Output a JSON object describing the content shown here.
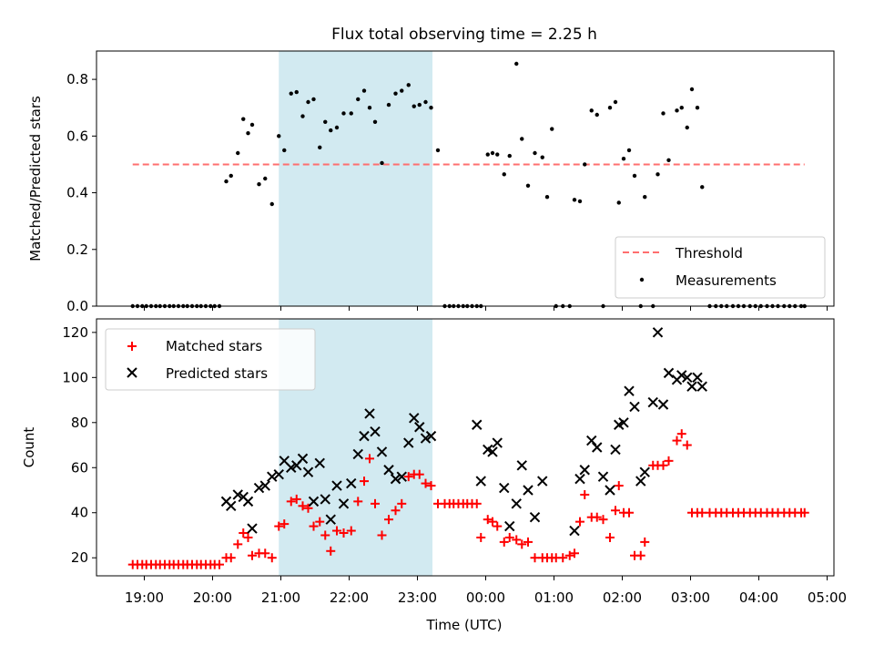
{
  "title": "Flux total observing time = 2.25 h",
  "xlabel": "Time (UTC)",
  "time_ticks": [
    "19:00",
    "20:00",
    "21:00",
    "22:00",
    "23:00",
    "00:00",
    "01:00",
    "02:00",
    "03:00",
    "04:00",
    "05:00"
  ],
  "time_tick_hours": [
    19,
    20,
    21,
    22,
    23,
    24,
    25,
    26,
    27,
    28,
    29
  ],
  "xlim_hours": [
    18.3,
    29.1
  ],
  "shaded_band_hours": [
    20.97,
    23.22
  ],
  "colors": {
    "band": "#add8e6",
    "threshold": "#ff6f6f",
    "matched": "#ff0000",
    "predicted": "#000000",
    "measurement": "#000000"
  },
  "chart_data": [
    {
      "type": "scatter",
      "ylabel": "Matched/Predicted stars",
      "ylim": [
        0,
        0.9
      ],
      "yticks": [
        0.0,
        0.2,
        0.4,
        0.6,
        0.8
      ],
      "ytick_labels": [
        "0.0",
        "0.2",
        "0.4",
        "0.6",
        "0.8"
      ],
      "legend_position": "lower-right",
      "threshold": {
        "name": "Threshold",
        "y": 0.5,
        "x_range": [
          18.83,
          28.67
        ]
      },
      "series": [
        {
          "name": "Measurements",
          "x": [
            18.83,
            18.9,
            18.97,
            19.03,
            19.1,
            19.17,
            19.23,
            19.3,
            19.37,
            19.43,
            19.5,
            19.57,
            19.63,
            19.7,
            19.77,
            19.83,
            19.9,
            19.97,
            20.03,
            20.1,
            20.2,
            20.27,
            20.37,
            20.45,
            20.52,
            20.58,
            20.68,
            20.77,
            20.87,
            20.97,
            21.05,
            21.15,
            21.23,
            21.32,
            21.4,
            21.48,
            21.57,
            21.65,
            21.73,
            21.82,
            21.92,
            22.03,
            22.13,
            22.22,
            22.3,
            22.38,
            22.48,
            22.58,
            22.68,
            22.77,
            22.87,
            22.95,
            23.03,
            23.12,
            23.2,
            23.3,
            23.4,
            23.47,
            23.53,
            23.6,
            23.67,
            23.73,
            23.8,
            23.87,
            23.93,
            24.03,
            24.1,
            24.17,
            24.27,
            24.35,
            24.45,
            24.53,
            24.62,
            24.72,
            24.83,
            24.9,
            24.97,
            25.03,
            25.13,
            25.23,
            25.3,
            25.38,
            25.45,
            25.55,
            25.63,
            25.72,
            25.82,
            25.9,
            25.95,
            26.02,
            26.1,
            26.18,
            26.27,
            26.33,
            26.45,
            26.52,
            26.6,
            26.68,
            26.8,
            26.87,
            26.95,
            27.02,
            27.1,
            27.17,
            27.28,
            27.37,
            27.45,
            27.53,
            27.62,
            27.7,
            27.78,
            27.87,
            27.95,
            28.03,
            28.12,
            28.2,
            28.28,
            28.37,
            28.45,
            28.53,
            28.62,
            28.67
          ],
          "y": [
            0,
            0,
            0,
            0,
            0,
            0,
            0,
            0,
            0,
            0,
            0,
            0,
            0,
            0,
            0,
            0,
            0,
            0,
            0,
            0,
            0.44,
            0.46,
            0.54,
            0.66,
            0.61,
            0.64,
            0.43,
            0.45,
            0.36,
            0.6,
            0.55,
            0.75,
            0.755,
            0.67,
            0.72,
            0.73,
            0.56,
            0.65,
            0.62,
            0.63,
            0.68,
            0.68,
            0.73,
            0.76,
            0.7,
            0.65,
            0.505,
            0.71,
            0.75,
            0.76,
            0.78,
            0.705,
            0.71,
            0.72,
            0.7,
            0.55,
            0,
            0,
            0,
            0,
            0,
            0,
            0,
            0,
            0,
            0.535,
            0.54,
            0.535,
            0.465,
            0.53,
            0.855,
            0.59,
            0.425,
            0.54,
            0.525,
            0.385,
            0.625,
            0,
            0,
            0,
            0.375,
            0.37,
            0.5,
            0.69,
            0.675,
            0,
            0.7,
            0.72,
            0.365,
            0.52,
            0.55,
            0.46,
            0,
            0.385,
            0,
            0.465,
            0.68,
            0.515,
            0.69,
            0.7,
            0.63,
            0.765,
            0.7,
            0.42,
            0,
            0,
            0,
            0,
            0,
            0,
            0,
            0,
            0,
            0,
            0,
            0,
            0,
            0,
            0,
            0,
            0,
            0
          ]
        }
      ]
    },
    {
      "type": "scatter",
      "ylabel": "Count",
      "ylim": [
        12,
        126
      ],
      "yticks": [
        20,
        40,
        60,
        80,
        100,
        120
      ],
      "ytick_labels": [
        "20",
        "40",
        "60",
        "80",
        "100",
        "120"
      ],
      "legend_position": "upper-left",
      "series": [
        {
          "name": "Matched stars",
          "marker": "plus",
          "x": [
            18.83,
            18.9,
            18.97,
            19.03,
            19.1,
            19.17,
            19.23,
            19.3,
            19.37,
            19.43,
            19.5,
            19.57,
            19.63,
            19.7,
            19.77,
            19.83,
            19.9,
            19.97,
            20.03,
            20.1,
            20.2,
            20.27,
            20.37,
            20.45,
            20.52,
            20.58,
            20.68,
            20.77,
            20.87,
            20.97,
            21.05,
            21.15,
            21.23,
            21.32,
            21.4,
            21.48,
            21.57,
            21.65,
            21.73,
            21.82,
            21.92,
            22.03,
            22.13,
            22.22,
            22.3,
            22.38,
            22.48,
            22.58,
            22.68,
            22.77,
            22.87,
            22.95,
            23.03,
            23.12,
            23.2,
            23.3,
            23.4,
            23.47,
            23.53,
            23.6,
            23.67,
            23.73,
            23.8,
            23.87,
            23.93,
            24.03,
            24.1,
            24.17,
            24.27,
            24.35,
            24.45,
            24.53,
            24.62,
            24.72,
            24.83,
            24.9,
            24.97,
            25.03,
            25.13,
            25.23,
            25.3,
            25.38,
            25.45,
            25.55,
            25.63,
            25.72,
            25.82,
            25.9,
            25.95,
            26.02,
            26.1,
            26.18,
            26.27,
            26.33,
            26.45,
            26.52,
            26.6,
            26.68,
            26.8,
            26.87,
            26.95,
            27.02,
            27.1,
            27.17,
            27.28,
            27.37,
            27.45,
            27.53,
            27.62,
            27.7,
            27.78,
            27.87,
            27.95,
            28.03,
            28.12,
            28.2,
            28.28,
            28.37,
            28.45,
            28.53,
            28.62,
            28.67
          ],
          "y": [
            17,
            17,
            17,
            17,
            17,
            17,
            17,
            17,
            17,
            17,
            17,
            17,
            17,
            17,
            17,
            17,
            17,
            17,
            17,
            17,
            20,
            20,
            26,
            31,
            29,
            21,
            22,
            22,
            20,
            34,
            35,
            45,
            46,
            43,
            42,
            34,
            36,
            30,
            23,
            32,
            31,
            32,
            45,
            54,
            64,
            44,
            30,
            37,
            41,
            44,
            56,
            57,
            57,
            53,
            52,
            44,
            44,
            44,
            44,
            44,
            44,
            44,
            44,
            44,
            29,
            37,
            36,
            34,
            27,
            29,
            28,
            26,
            27,
            20,
            20,
            20,
            20,
            20,
            20,
            21,
            22,
            36,
            48,
            38,
            38,
            37,
            29,
            41,
            52,
            40,
            40,
            21,
            21,
            27,
            61,
            61,
            61,
            63,
            72,
            75,
            70,
            40,
            40,
            40,
            40,
            40,
            40,
            40,
            40,
            40,
            40,
            40,
            40,
            40,
            40,
            40,
            40,
            40,
            40,
            40,
            40,
            40
          ]
        },
        {
          "name": "Predicted stars",
          "marker": "x",
          "x": [
            20.2,
            20.27,
            20.37,
            20.45,
            20.52,
            20.58,
            20.68,
            20.77,
            20.87,
            20.97,
            21.05,
            21.15,
            21.23,
            21.32,
            21.4,
            21.48,
            21.57,
            21.65,
            21.73,
            21.82,
            21.92,
            22.03,
            22.13,
            22.22,
            22.3,
            22.38,
            22.48,
            22.58,
            22.68,
            22.77,
            22.87,
            22.95,
            23.03,
            23.12,
            23.2,
            23.87,
            23.93,
            24.03,
            24.1,
            24.17,
            24.27,
            24.35,
            24.45,
            24.53,
            24.62,
            24.72,
            24.83,
            25.3,
            25.38,
            25.45,
            25.55,
            25.63,
            25.72,
            25.82,
            25.9,
            25.95,
            26.02,
            26.1,
            26.18,
            26.27,
            26.33,
            26.45,
            26.52,
            26.6,
            26.68,
            26.8,
            26.87,
            26.95,
            27.02,
            27.1,
            27.17
          ],
          "y": [
            45,
            43,
            48,
            47,
            45,
            33,
            51,
            52,
            56,
            57,
            63,
            60,
            61,
            64,
            58,
            45,
            62,
            46,
            37,
            52,
            44,
            53,
            66,
            74,
            84,
            76,
            67,
            59,
            55,
            56,
            71,
            82,
            78,
            73,
            74,
            79,
            54,
            68,
            67,
            71,
            51,
            34,
            44,
            61,
            50,
            38,
            54,
            32,
            55,
            59,
            72,
            69,
            56,
            50,
            68,
            79,
            80,
            94,
            87,
            54,
            58,
            89,
            120,
            88,
            102,
            99,
            101,
            100,
            96,
            100,
            96
          ]
        }
      ]
    }
  ]
}
